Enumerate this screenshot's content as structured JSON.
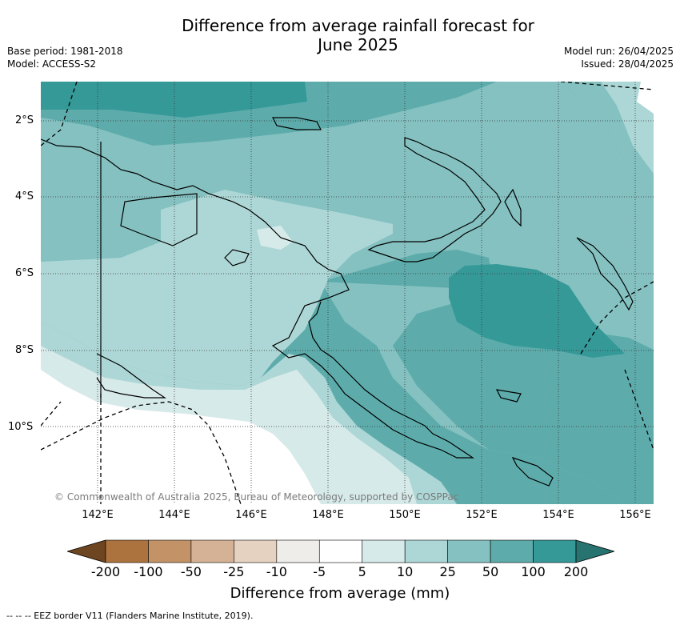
{
  "header": {
    "title_line1": "Difference from average rainfall forecast for",
    "title_line2": "June 2025",
    "base_period": "Base period: 1981-2018",
    "model": "Model: ACCESS-S2",
    "model_run": "Model run: 26/04/2025",
    "issued": "Issued: 28/04/2025"
  },
  "map": {
    "lat_labels": [
      "2°S",
      "4°S",
      "6°S",
      "8°S",
      "10°S"
    ],
    "lon_labels": [
      "142°E",
      "144°E",
      "146°E",
      "148°E",
      "150°E",
      "152°E",
      "154°E",
      "156°E"
    ],
    "copyright": "© Commonwealth of Australia 2025, Bureau of Meteorology, supported by COSPPac"
  },
  "legend": {
    "labels": [
      "-200",
      "-100",
      "-50",
      "-25",
      "-10",
      "-5",
      "5",
      "10",
      "25",
      "50",
      "100",
      "200"
    ],
    "colors": [
      "#6e4521",
      "#ac733e",
      "#c39367",
      "#d5b295",
      "#e6d2c0",
      "#eeede9",
      "#ffffff",
      "#d6eae9",
      "#add7d6",
      "#85c1c1",
      "#5dacab",
      "#359998",
      "#267370"
    ],
    "title": "Difference from average (mm)"
  },
  "footer": {
    "eez_note": "--  --  -- EEZ border V11 (Flanders Marine Institute, 2019)."
  }
}
